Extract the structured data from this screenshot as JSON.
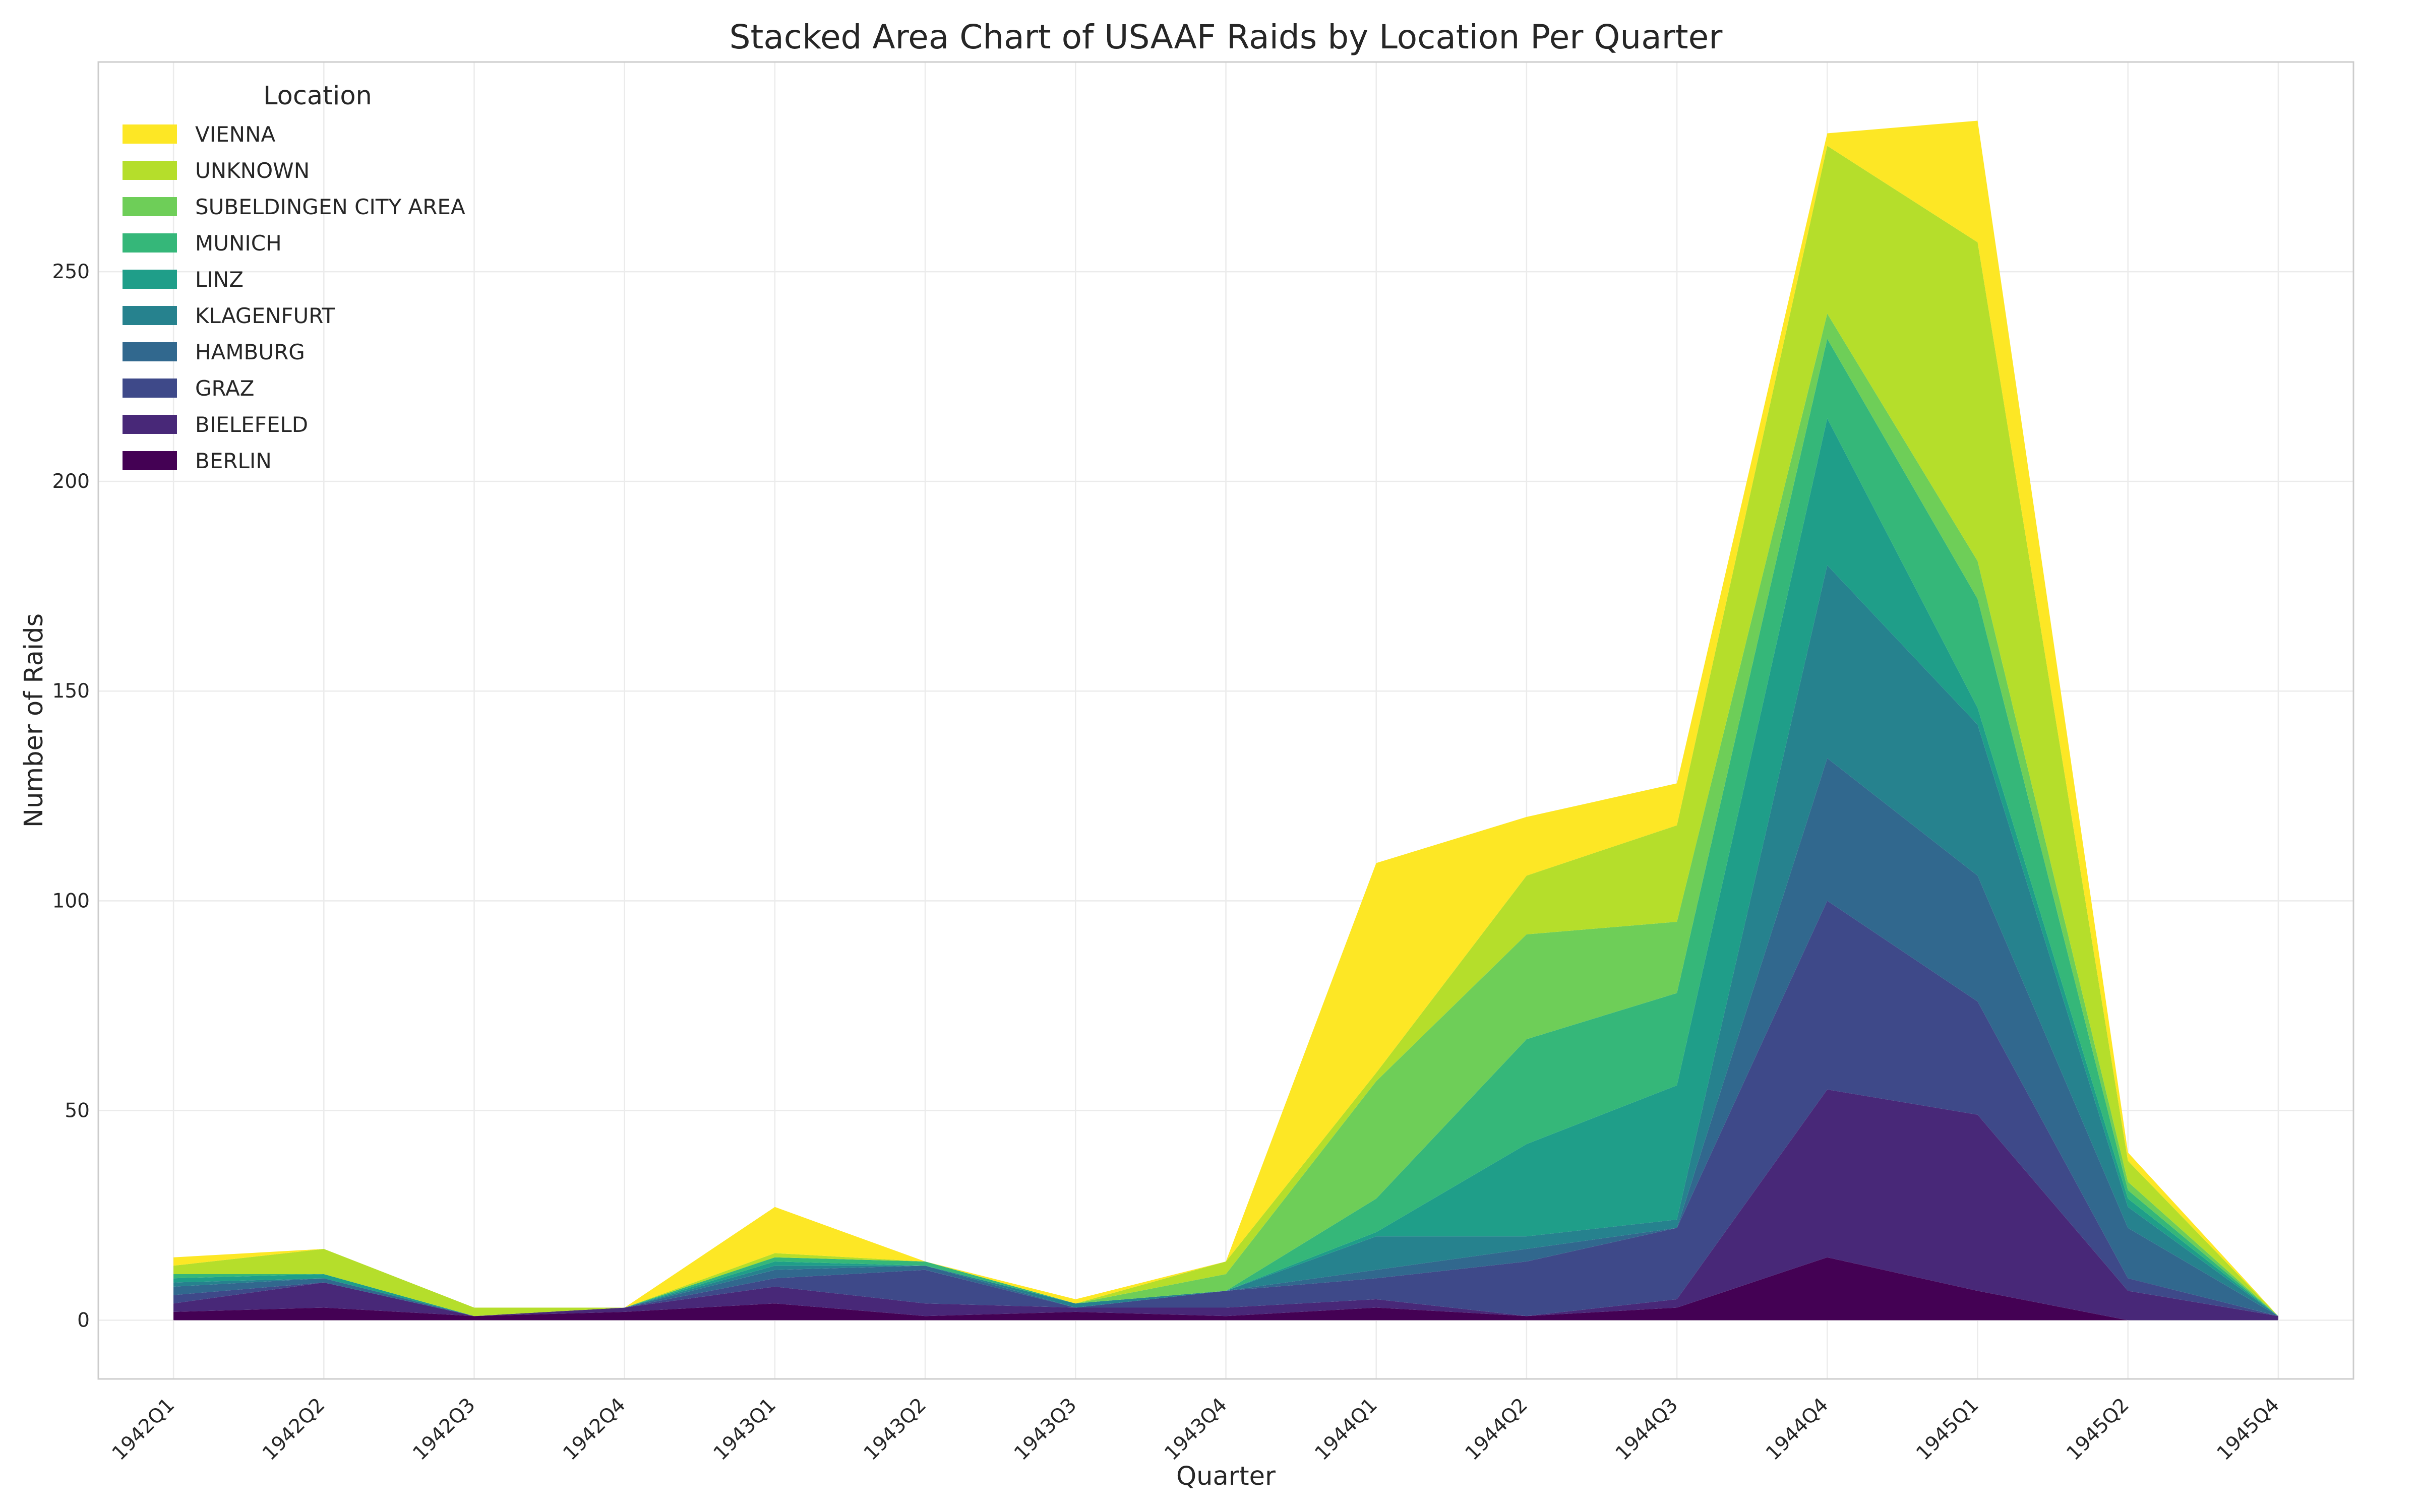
{
  "chart_data": {
    "type": "area",
    "stacked": true,
    "title": "Stacked Area Chart of USAAF Raids by Location Per Quarter",
    "xlabel": "Quarter",
    "ylabel": "Number of Raids",
    "categories": [
      "1942Q1",
      "1942Q2",
      "1942Q3",
      "1942Q4",
      "1943Q1",
      "1943Q2",
      "1943Q3",
      "1943Q4",
      "1944Q1",
      "1944Q2",
      "1944Q3",
      "1944Q4",
      "1945Q1",
      "1945Q2",
      "1945Q4"
    ],
    "ylim": [
      -14,
      300
    ],
    "yticks": [
      0,
      50,
      100,
      150,
      200,
      250
    ],
    "grid": true,
    "legend": {
      "title": "Location",
      "placement": "top-left"
    },
    "series": [
      {
        "name": "BERLIN",
        "color": "#440154",
        "values": [
          2,
          3,
          1,
          2,
          4,
          1,
          2,
          1,
          3,
          1,
          3,
          15,
          7,
          0,
          0
        ]
      },
      {
        "name": "BIELEFELD",
        "color": "#482878",
        "values": [
          2,
          6,
          0,
          1,
          4,
          3,
          1,
          2,
          2,
          0,
          2,
          40,
          42,
          7,
          1
        ]
      },
      {
        "name": "GRAZ",
        "color": "#3e4989",
        "values": [
          2,
          0,
          0,
          0,
          2,
          8,
          0,
          4,
          5,
          13,
          17,
          45,
          27,
          3,
          0
        ]
      },
      {
        "name": "HAMBURG",
        "color": "#31688e",
        "values": [
          2,
          1,
          0,
          0,
          2,
          1,
          0,
          0,
          2,
          3,
          0,
          34,
          30,
          12,
          0
        ]
      },
      {
        "name": "KLAGENFURT",
        "color": "#26828e",
        "values": [
          1,
          0,
          0,
          0,
          1,
          0,
          1,
          0,
          8,
          3,
          2,
          46,
          36,
          5,
          0
        ]
      },
      {
        "name": "LINZ",
        "color": "#1f9e89",
        "values": [
          1,
          1,
          0,
          0,
          1,
          0,
          0,
          0,
          1,
          22,
          32,
          35,
          4,
          2,
          0
        ]
      },
      {
        "name": "MUNICH",
        "color": "#35b779",
        "values": [
          1,
          0,
          0,
          0,
          1,
          1,
          0,
          0,
          8,
          25,
          22,
          19,
          26,
          2,
          0
        ]
      },
      {
        "name": "SUBELDINGEN CITY AREA",
        "color": "#6ece58",
        "values": [
          0,
          0,
          0,
          0,
          0,
          0,
          0,
          4,
          28,
          25,
          17,
          6,
          9,
          2,
          0
        ]
      },
      {
        "name": "UNKNOWN",
        "color": "#b5de2b",
        "values": [
          2,
          6,
          2,
          0,
          1,
          0,
          0,
          3,
          2,
          14,
          23,
          40,
          76,
          5,
          0
        ]
      },
      {
        "name": "VIENNA",
        "color": "#fde725",
        "values": [
          2,
          0,
          0,
          0,
          11,
          0,
          1,
          0,
          50,
          14,
          10,
          3,
          29,
          2,
          0
        ]
      }
    ]
  }
}
